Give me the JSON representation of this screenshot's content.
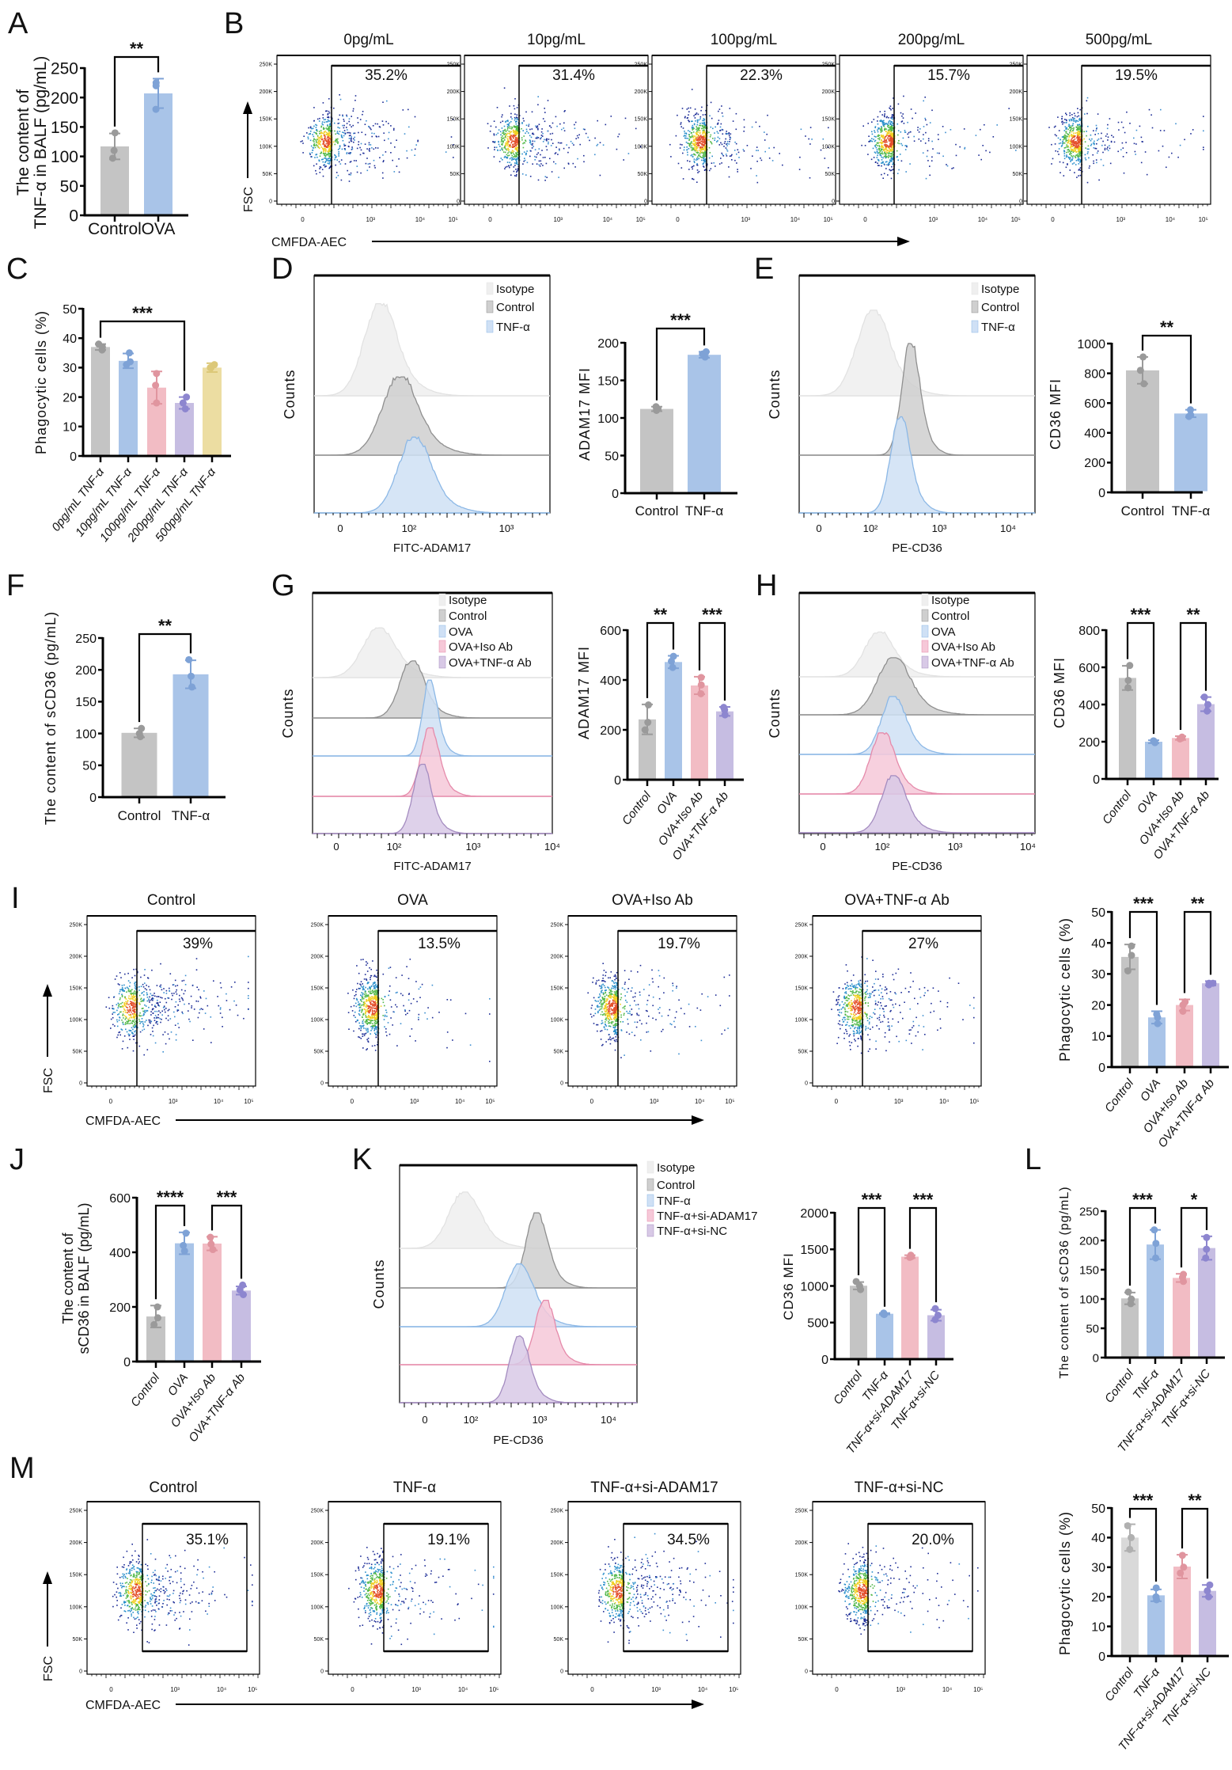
{
  "panel_labels": [
    "A",
    "B",
    "C",
    "D",
    "E",
    "F",
    "G",
    "H",
    "I",
    "J",
    "K",
    "L",
    "M"
  ],
  "palette": {
    "gray": "#c4c4c4",
    "gray_dot": "#9a9a9a",
    "lightgray": "#d9d9d9",
    "lightgray_dot": "#b0b0b0",
    "blue": "#a9c4e8",
    "blue_dot": "#7ea2d6",
    "pink": "#f2bcc4",
    "pink_dot": "#e0959f",
    "purple": "#c6bde2",
    "purple_dot": "#8d86cf",
    "yellow": "#ecdda2",
    "yellow_dot": "#dcc878",
    "h_isotype": "#efefef",
    "h_isotype_line": "#e2e2e2",
    "h_control": "#cfcfcf",
    "h_control_line": "#8f8f8f",
    "h_blue": "#cfe0f5",
    "h_blue_line": "#8cb8e6",
    "h_pink": "#f6c8d8",
    "h_pink_line": "#e58aaa",
    "h_purple": "#d8c9e6",
    "h_purple_line": "#a48cc0"
  },
  "chart_data": [
    {
      "id": "A",
      "type": "bar",
      "ylabel": [
        "The content of",
        "TNF-α in BALF (pg/mL)"
      ],
      "ylim": [
        0,
        250
      ],
      "yticks": [
        0,
        50,
        100,
        150,
        200,
        250
      ],
      "categories": [
        "Control",
        "OVA"
      ],
      "values": [
        117,
        207
      ],
      "sd": [
        22,
        25
      ],
      "points": [
        [
          140,
          110,
          97
        ],
        [
          225,
          220,
          180
        ]
      ],
      "colors": [
        "gray",
        "blue"
      ],
      "significance": [
        {
          "pair": [
            0,
            1
          ],
          "label": "**"
        }
      ]
    },
    {
      "id": "B",
      "type": "flow",
      "xlabel": "CMFDA-AEC",
      "ylabel": "FSC",
      "yticks": [
        "0",
        "50K",
        "100K",
        "150K",
        "200K",
        "250K"
      ],
      "xticks": [
        "0",
        "10³",
        "10⁴",
        "10⁵"
      ],
      "plots": [
        {
          "title": "0pg/mL",
          "gate_label": "35.2%",
          "gate_percent": 35.2
        },
        {
          "title": "10pg/mL",
          "gate_label": "31.4%",
          "gate_percent": 31.4
        },
        {
          "title": "100pg/mL",
          "gate_label": "22.3%",
          "gate_percent": 22.3
        },
        {
          "title": "200pg/mL",
          "gate_label": "15.7%",
          "gate_percent": 15.7
        },
        {
          "title": "500pg/mL",
          "gate_label": "19.5%",
          "gate_percent": 19.5
        }
      ]
    },
    {
      "id": "C",
      "type": "bar",
      "ylabel": "Phagocytic cells (%)",
      "ylim": [
        0,
        50
      ],
      "yticks": [
        0,
        10,
        20,
        30,
        40,
        50
      ],
      "categories": [
        "0pg/mL TNF-α",
        "10pg/mL TNF-α",
        "100pg/mL TNF-α",
        "200pg/mL TNF-α",
        "500pg/mL TNF-α"
      ],
      "values": [
        37,
        32.3,
        23.2,
        18,
        30
      ],
      "sd": [
        1,
        2.5,
        5.5,
        2,
        1.5
      ],
      "points": [
        [
          38,
          37,
          36
        ],
        [
          35,
          31,
          32
        ],
        [
          28,
          24,
          18
        ],
        [
          20,
          18,
          16
        ],
        [
          31,
          30,
          30
        ]
      ],
      "colors": [
        "gray",
        "blue",
        "pink",
        "purple",
        "yellow"
      ],
      "significance": [
        {
          "pair": [
            0,
            3
          ],
          "label": "***"
        }
      ]
    },
    {
      "id": "D-hist",
      "type": "histogram",
      "ylabel": "Counts",
      "xlabel": "FITC-ADAM17",
      "xticks": [
        "0",
        "10²",
        "10³"
      ],
      "series": [
        {
          "name": "Isotype",
          "peak_log10": 1.7,
          "color": "h_isotype"
        },
        {
          "name": "Control",
          "peak_log10": 1.9,
          "color": "h_control"
        },
        {
          "name": "TNF-α",
          "peak_log10": 2.05,
          "color": "h_blue"
        }
      ]
    },
    {
      "id": "D",
      "type": "bar",
      "ylabel": "ADAM17 MFI",
      "ylim": [
        0,
        200
      ],
      "yticks": [
        0,
        50,
        100,
        150,
        200
      ],
      "categories": [
        "Control",
        "TNF-α"
      ],
      "values": [
        112,
        184
      ],
      "sd": [
        3,
        4
      ],
      "points": [
        [
          115,
          112,
          110
        ],
        [
          188,
          185,
          181
        ]
      ],
      "colors": [
        "gray",
        "blue"
      ],
      "significance": [
        {
          "pair": [
            0,
            1
          ],
          "label": "***"
        }
      ]
    },
    {
      "id": "E-hist",
      "type": "histogram",
      "ylabel": "Counts",
      "xlabel": "PE-CD36",
      "xticks": [
        "0",
        "10²",
        "10³",
        "10⁴"
      ],
      "series": [
        {
          "name": "Isotype",
          "peak_log10": 2.03,
          "color": "h_isotype"
        },
        {
          "name": "Control",
          "peak_log10": 2.58,
          "color": "h_control"
        },
        {
          "name": "TNF-α",
          "peak_log10": 2.43,
          "color": "h_blue"
        }
      ]
    },
    {
      "id": "E",
      "type": "bar",
      "ylabel": "CD36 MFI",
      "ylim": [
        0,
        1000
      ],
      "yticks": [
        0,
        200,
        400,
        600,
        800,
        1000
      ],
      "categories": [
        "Control",
        "TNF-α"
      ],
      "values": [
        820,
        530
      ],
      "sd": [
        90,
        25
      ],
      "points": [
        [
          910,
          820,
          730
        ],
        [
          555,
          520,
          510
        ]
      ],
      "colors": [
        "gray",
        "blue"
      ],
      "significance": [
        {
          "pair": [
            0,
            1
          ],
          "label": "**"
        }
      ]
    },
    {
      "id": "F",
      "type": "bar",
      "ylabel": "The content of sCD36 (pg/mL)",
      "ylim": [
        0,
        250
      ],
      "yticks": [
        0,
        50,
        100,
        150,
        200,
        250
      ],
      "categories": [
        "Control",
        "TNF-α"
      ],
      "values": [
        101,
        193
      ],
      "sd": [
        7,
        22
      ],
      "points": [
        [
          108,
          100,
          95
        ],
        [
          216,
          190,
          173
        ]
      ],
      "colors": [
        "gray",
        "blue"
      ],
      "significance": [
        {
          "pair": [
            0,
            1
          ],
          "label": "**"
        }
      ]
    },
    {
      "id": "G-hist",
      "type": "histogram",
      "ylabel": "Counts",
      "xlabel": "FITC-ADAM17",
      "xticks": [
        "0",
        "10²",
        "10³",
        "10⁴"
      ],
      "series": [
        {
          "name": "Isotype",
          "peak_log10": 1.8,
          "color": "h_isotype"
        },
        {
          "name": "Control",
          "peak_log10": 2.22,
          "color": "h_control"
        },
        {
          "name": "OVA",
          "peak_log10": 2.45,
          "color": "h_blue"
        },
        {
          "name": "OVA+Iso Ab",
          "peak_log10": 2.45,
          "color": "h_pink"
        },
        {
          "name": "OVA+TNF-α Ab",
          "peak_log10": 2.35,
          "color": "h_purple"
        }
      ]
    },
    {
      "id": "G",
      "type": "bar",
      "ylabel": "ADAM17 MFI",
      "ylim": [
        0,
        600
      ],
      "yticks": [
        0,
        200,
        400,
        600
      ],
      "categories": [
        "Control",
        "OVA",
        "OVA+Iso Ab",
        "OVA+TNF-α Ab"
      ],
      "values": [
        242,
        472,
        378,
        274
      ],
      "sd": [
        60,
        25,
        35,
        18
      ],
      "points": [
        [
          300,
          230,
          200
        ],
        [
          495,
          475,
          450
        ],
        [
          410,
          380,
          345
        ],
        [
          290,
          280,
          260
        ]
      ],
      "colors": [
        "gray",
        "blue",
        "pink",
        "purple"
      ],
      "significance": [
        {
          "pair": [
            0,
            1
          ],
          "label": "**"
        },
        {
          "pair": [
            2,
            3
          ],
          "label": "***"
        }
      ]
    },
    {
      "id": "H-hist",
      "type": "histogram",
      "ylabel": "Counts",
      "xlabel": "PE-CD36",
      "xticks": [
        "0",
        "10²",
        "10³",
        "10⁴"
      ],
      "series": [
        {
          "name": "Isotype",
          "peak_log10": 1.95,
          "color": "h_isotype"
        },
        {
          "name": "Control",
          "peak_log10": 2.15,
          "color": "h_control"
        },
        {
          "name": "OVA",
          "peak_log10": 2.15,
          "color": "h_blue"
        },
        {
          "name": "OVA+Iso Ab",
          "peak_log10": 2.0,
          "color": "h_pink"
        },
        {
          "name": "OVA+TNF-α Ab",
          "peak_log10": 2.15,
          "color": "h_purple"
        }
      ]
    },
    {
      "id": "H",
      "type": "bar",
      "ylabel": "CD36 MFI",
      "ylim": [
        0,
        800
      ],
      "yticks": [
        0,
        200,
        400,
        600,
        800
      ],
      "categories": [
        "Control",
        "OVA",
        "OVA+Iso Ab",
        "OVA+TNF-α Ab"
      ],
      "values": [
        543,
        200,
        220,
        402
      ],
      "sd": [
        65,
        8,
        10,
        38
      ],
      "points": [
        [
          610,
          530,
          490
        ],
        [
          205,
          200,
          195
        ],
        [
          225,
          220,
          215
        ],
        [
          440,
          400,
          365
        ]
      ],
      "colors": [
        "gray",
        "blue",
        "pink",
        "purple"
      ],
      "significance": [
        {
          "pair": [
            0,
            1
          ],
          "label": "***"
        },
        {
          "pair": [
            2,
            3
          ],
          "label": "**"
        }
      ]
    },
    {
      "id": "I",
      "type": "flow",
      "xlabel": "CMFDA-AEC",
      "ylabel": "FSC",
      "yticks": [
        "0",
        "50K",
        "100K",
        "150K",
        "200K",
        "250K"
      ],
      "xticks": [
        "0",
        "10³",
        "10⁴",
        "10⁵"
      ],
      "plots": [
        {
          "title": "Control",
          "gate_label": "39%",
          "gate_percent": 39
        },
        {
          "title": "OVA",
          "gate_label": "13.5%",
          "gate_percent": 13.5
        },
        {
          "title": "OVA+Iso Ab",
          "gate_label": "19.7%",
          "gate_percent": 19.7
        },
        {
          "title": "OVA+TNF-α Ab",
          "gate_label": "27%",
          "gate_percent": 27
        }
      ]
    },
    {
      "id": "I-bar",
      "type": "bar",
      "ylabel": "Phagocytic cells (%)",
      "ylim": [
        0,
        50
      ],
      "yticks": [
        0,
        10,
        20,
        30,
        40,
        50
      ],
      "categories": [
        "Control",
        "OVA",
        "OVA+Iso Ab",
        "OVA+TNF-α Ab"
      ],
      "values": [
        35.5,
        16,
        20,
        27
      ],
      "sd": [
        4,
        2,
        1.8,
        0.7
      ],
      "points": [
        [
          39,
          36,
          31
        ],
        [
          17,
          16,
          14
        ],
        [
          21,
          20,
          18
        ],
        [
          27,
          27,
          26.5
        ]
      ],
      "colors": [
        "gray",
        "blue",
        "pink",
        "purple"
      ],
      "significance": [
        {
          "pair": [
            0,
            1
          ],
          "label": "***"
        },
        {
          "pair": [
            2,
            3
          ],
          "label": "**"
        }
      ]
    },
    {
      "id": "J",
      "type": "bar",
      "ylabel": [
        "The content of",
        "sCD36 in BALF (pg/mL)"
      ],
      "ylim": [
        0,
        600
      ],
      "yticks": [
        0,
        200,
        400,
        600
      ],
      "categories": [
        "Control",
        "OVA",
        "OVA+Iso Ab",
        "OVA+TNF-α Ab"
      ],
      "values": [
        165,
        433,
        432,
        260
      ],
      "sd": [
        40,
        40,
        25,
        15
      ],
      "points": [
        [
          200,
          160,
          135
        ],
        [
          470,
          425,
          405
        ],
        [
          455,
          430,
          410
        ],
        [
          280,
          262,
          245
        ]
      ],
      "colors": [
        "gray",
        "blue",
        "pink",
        "purple"
      ],
      "significance": [
        {
          "pair": [
            0,
            1
          ],
          "label": "****"
        },
        {
          "pair": [
            2,
            3
          ],
          "label": "***"
        }
      ]
    },
    {
      "id": "K-hist",
      "type": "histogram",
      "ylabel": "Counts",
      "xlabel": "PE-CD36",
      "xticks": [
        "0",
        "10²",
        "10³",
        "10⁴"
      ],
      "series": [
        {
          "name": "Isotype",
          "peak_log10": 1.9,
          "color": "h_isotype"
        },
        {
          "name": "Control",
          "peak_log10": 2.95,
          "color": "h_control"
        },
        {
          "name": "TNF-α",
          "peak_log10": 2.7,
          "color": "h_blue"
        },
        {
          "name": "TNF-α+si-ADAM17",
          "peak_log10": 3.07,
          "color": "h_pink"
        },
        {
          "name": "TNF-α+si-NC",
          "peak_log10": 2.7,
          "color": "h_purple"
        }
      ]
    },
    {
      "id": "K",
      "type": "bar",
      "ylabel": "CD36 MFI",
      "ylim": [
        0,
        2000
      ],
      "yticks": [
        0,
        500,
        1000,
        1500,
        2000
      ],
      "categories": [
        "Control",
        "TNF-α",
        "TNF-α+si-ADAM17",
        "TNF-α+si-NC"
      ],
      "values": [
        1003,
        620,
        1400,
        600
      ],
      "sd": [
        50,
        10,
        20,
        75
      ],
      "points": [
        [
          1060,
          1000,
          950
        ],
        [
          630,
          615,
          610
        ],
        [
          1420,
          1400,
          1390
        ],
        [
          690,
          600,
          540
        ]
      ],
      "colors": [
        "gray",
        "blue",
        "pink",
        "purple"
      ],
      "significance": [
        {
          "pair": [
            0,
            1
          ],
          "label": "***"
        },
        {
          "pair": [
            2,
            3
          ],
          "label": "***"
        }
      ]
    },
    {
      "id": "L",
      "type": "bar",
      "ylabel": "The content of sCD36 (pg/mL)",
      "ylim": [
        0,
        250
      ],
      "yticks": [
        0,
        50,
        100,
        150,
        200,
        250
      ],
      "categories": [
        "Control",
        "TNF-α",
        "TNF-α+si-ADAM17",
        "TNF-α+si-NC"
      ],
      "values": [
        101,
        193,
        136,
        187
      ],
      "sd": [
        10,
        25,
        7,
        20
      ],
      "points": [
        [
          112,
          100,
          92
        ],
        [
          218,
          195,
          170
        ],
        [
          142,
          137,
          130
        ],
        [
          205,
          185,
          170
        ]
      ],
      "colors": [
        "gray",
        "blue",
        "pink",
        "purple"
      ],
      "significance": [
        {
          "pair": [
            0,
            1
          ],
          "label": "***"
        },
        {
          "pair": [
            2,
            3
          ],
          "label": "*"
        }
      ]
    },
    {
      "id": "M",
      "type": "flow",
      "xlabel": "CMFDA-AEC",
      "ylabel": "FSC",
      "yticks": [
        "0",
        "50K",
        "100K",
        "150K",
        "200K",
        "250K"
      ],
      "xticks": [
        "0",
        "10³",
        "10⁴",
        "10⁵"
      ],
      "plots": [
        {
          "title": "Control",
          "gate_label": "35.1%",
          "gate_percent": 35.1
        },
        {
          "title": "TNF-α",
          "gate_label": "19.1%",
          "gate_percent": 19.1
        },
        {
          "title": "TNF-α+si-ADAM17",
          "gate_label": "34.5%",
          "gate_percent": 34.5
        },
        {
          "title": "TNF-α+si-NC",
          "gate_label": "20.0%",
          "gate_percent": 20.0
        }
      ]
    },
    {
      "id": "M-bar",
      "type": "bar",
      "ylabel": "Phagocytic cells (%)",
      "ylim": [
        0,
        50
      ],
      "yticks": [
        0,
        10,
        20,
        30,
        40,
        50
      ],
      "categories": [
        "Control",
        "TNF-α",
        "TNF-α+si-ADAM17",
        "TNF-α+si-NC"
      ],
      "values": [
        40,
        20.5,
        30.2,
        22
      ],
      "sd": [
        4.5,
        2,
        4,
        2
      ],
      "points": [
        [
          44,
          40,
          36
        ],
        [
          23,
          20,
          19
        ],
        [
          34,
          30,
          28
        ],
        [
          24,
          22,
          20
        ]
      ],
      "colors": [
        "lightgray",
        "blue",
        "pink",
        "purple"
      ],
      "significance": [
        {
          "pair": [
            0,
            1
          ],
          "label": "***"
        },
        {
          "pair": [
            2,
            3
          ],
          "label": "**"
        }
      ]
    }
  ]
}
